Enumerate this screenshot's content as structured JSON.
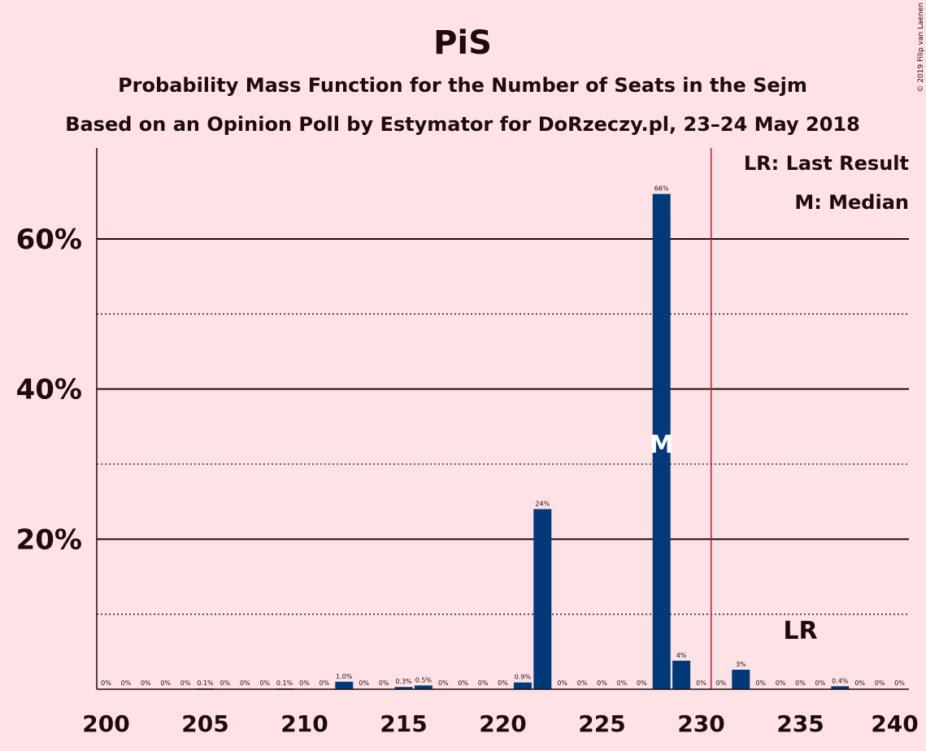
{
  "copyright": "© 2019 Filip van Laenen",
  "legend": {
    "last_result": "LR: Last Result",
    "median": "M: Median"
  },
  "colors": {
    "background": "#FFE2E6",
    "bar": "#003A78",
    "last_result_line": "#C8102E",
    "text": "#1f0a10"
  },
  "chart_data": {
    "type": "bar",
    "title": "PiS",
    "subtitle": "Probability Mass Function for the Number of Seats in the Sejm",
    "subtitle2": "Based on an Opinion Poll by Estymator for DoRzeczy.pl, 23–24 May 2018",
    "xlabel": "",
    "ylabel": "",
    "xlim": [
      200,
      240
    ],
    "ylim": [
      0,
      72
    ],
    "x_ticks": [
      200,
      205,
      210,
      215,
      220,
      225,
      230,
      235,
      240
    ],
    "y_major_ticks": [
      {
        "value": 20,
        "label": "20%"
      },
      {
        "value": 40,
        "label": "40%"
      },
      {
        "value": 60,
        "label": "60%"
      }
    ],
    "y_minor_gridlines": [
      10,
      30,
      50
    ],
    "last_result": {
      "x": 230.5,
      "label": "LR",
      "label_x": 235
    },
    "median": {
      "x": 228,
      "label": "M"
    },
    "series": [
      {
        "x": [
          200,
          201,
          202,
          203,
          204,
          205,
          206,
          207,
          208,
          209,
          210,
          211,
          212,
          213,
          214,
          215,
          216,
          217,
          218,
          219,
          220,
          221,
          222,
          223,
          224,
          225,
          226,
          227,
          228,
          229,
          230,
          231,
          232,
          233,
          234,
          235,
          236,
          237,
          238,
          239,
          240
        ],
        "values": [
          0,
          0,
          0,
          0,
          0,
          0.1,
          0,
          0,
          0,
          0.1,
          0,
          0,
          1.0,
          0,
          0,
          0.3,
          0.5,
          0,
          0,
          0,
          0,
          0.9,
          24,
          0,
          0,
          0,
          0,
          0,
          66,
          4,
          0,
          0,
          3,
          0,
          0,
          0,
          0,
          0.4,
          0,
          0,
          0
        ],
        "labels": [
          "0%",
          "0%",
          "0%",
          "0%",
          "0%",
          "0.1%",
          "0%",
          "0%",
          "0%",
          "0.1%",
          "0%",
          "0%",
          "1.0%",
          "0%",
          "0%",
          "0.3%",
          "0.5%",
          "0%",
          "0%",
          "0%",
          "0%",
          "0.9%",
          "24%",
          "0%",
          "0%",
          "0%",
          "0%",
          "0%",
          "66%",
          "4%",
          "0%",
          "0%",
          "3%",
          "0%",
          "0%",
          "0%",
          "0%",
          "0.4%",
          "0%",
          "0%",
          "0%"
        ],
        "bar_heights": [
          0,
          0,
          0,
          0,
          0,
          0.1,
          0,
          0,
          0,
          0.1,
          0,
          0,
          1.0,
          0,
          0,
          0.3,
          0.5,
          0,
          0,
          0,
          0,
          0.9,
          24,
          0,
          0,
          0,
          0,
          0,
          66,
          3.8,
          0,
          0,
          2.6,
          0,
          0,
          0,
          0,
          0.4,
          0,
          0,
          0
        ]
      }
    ]
  }
}
